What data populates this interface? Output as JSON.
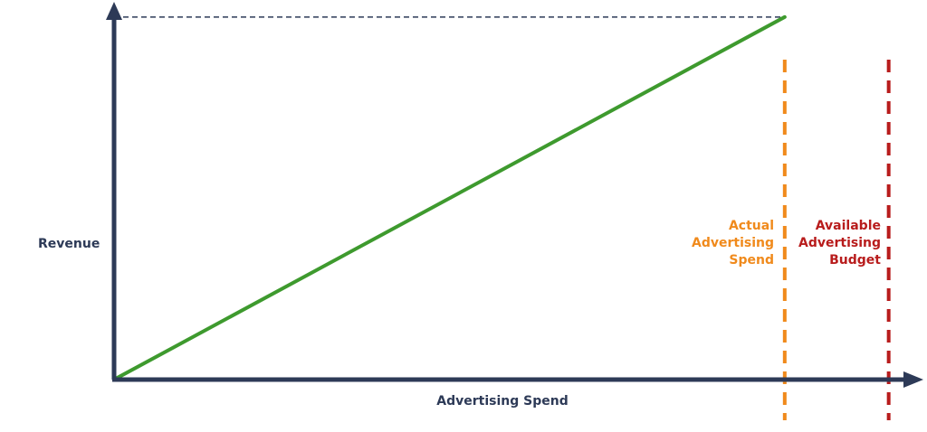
{
  "chart_data": {
    "type": "line",
    "xlabel": "Advertising Spend",
    "ylabel": "Revenue",
    "series": [
      {
        "x": [
          0,
          1
        ],
        "y": [
          0,
          1
        ],
        "color": "#3e9a2e"
      }
    ],
    "reference_lines": [
      {
        "orientation": "horizontal",
        "y": 1,
        "x_end": 1,
        "style": "dashed",
        "color": "#2d3a57"
      },
      {
        "orientation": "vertical",
        "x": 1,
        "label_lines": [
          "Actual",
          "Advertising",
          "Spend"
        ],
        "style": "dashed",
        "color": "#f08a1c"
      },
      {
        "orientation": "vertical",
        "x": 1.155,
        "label_lines": [
          "Available",
          "Advertising",
          "Budget"
        ],
        "style": "dashed",
        "color": "#b81c1c"
      }
    ],
    "xlim": [
      0,
      1.2
    ],
    "ylim": [
      0,
      1.012
    ],
    "grid": false,
    "axis_color": "#2d3a57"
  }
}
